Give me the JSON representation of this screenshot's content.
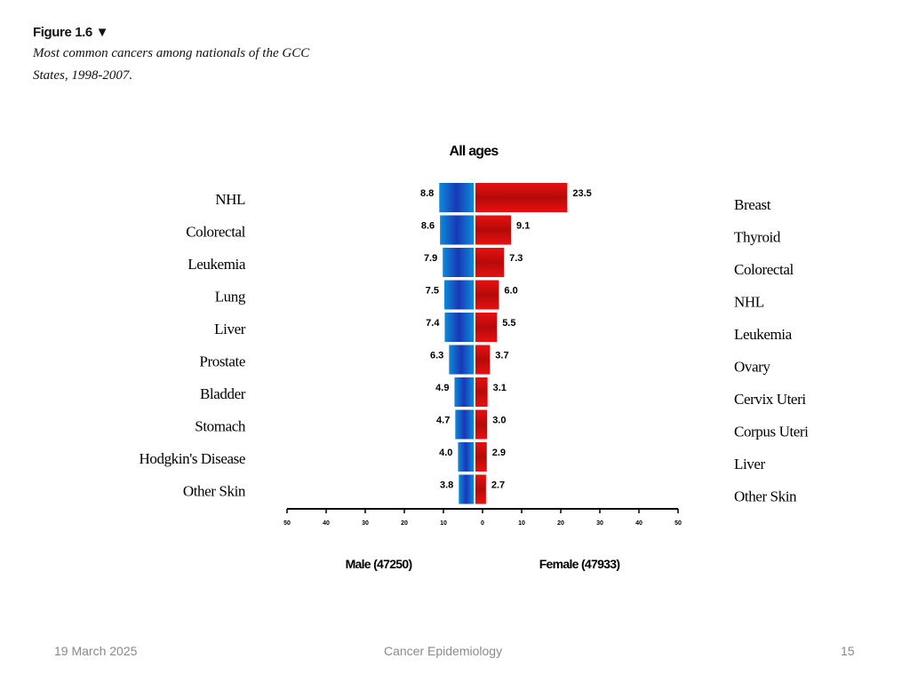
{
  "figure": {
    "label": "Figure 1.6 ▼",
    "caption": "Most common cancers among nationals of the GCC States, 1998-2007."
  },
  "footer": {
    "date": "19 March 2025",
    "title": "Cancer Epidemiology",
    "page": "15"
  },
  "colors": {
    "male": "#1e5fc8",
    "female": "#cc0f0f"
  },
  "chart_data": {
    "type": "bar",
    "title": "All ages",
    "orientation": "horizontal",
    "male_label": "Male (47250)",
    "female_label": "Female (47933)",
    "xlim": [
      -50,
      50
    ],
    "x_ticks": [
      "50",
      "40",
      "30",
      "20",
      "10",
      "0",
      "10",
      "20",
      "30",
      "40",
      "50"
    ],
    "male": {
      "categories": [
        "NHL",
        "Colorectal",
        "Leukemia",
        "Lung",
        "Liver",
        "Prostate",
        "Bladder",
        "Stomach",
        "Hodgkin's Disease",
        "Other Skin"
      ],
      "values": [
        8.8,
        8.6,
        7.9,
        7.5,
        7.4,
        6.3,
        4.9,
        4.7,
        4.0,
        3.8
      ]
    },
    "female": {
      "categories": [
        "Breast",
        "Thyroid",
        "Colorectal",
        "NHL",
        "Leukemia",
        "Ovary",
        "Cervix Uteri",
        "Corpus Uteri",
        "Liver",
        "Other Skin"
      ],
      "values": [
        23.5,
        9.1,
        7.3,
        6.0,
        5.5,
        3.7,
        3.1,
        3.0,
        2.9,
        2.7
      ]
    }
  }
}
